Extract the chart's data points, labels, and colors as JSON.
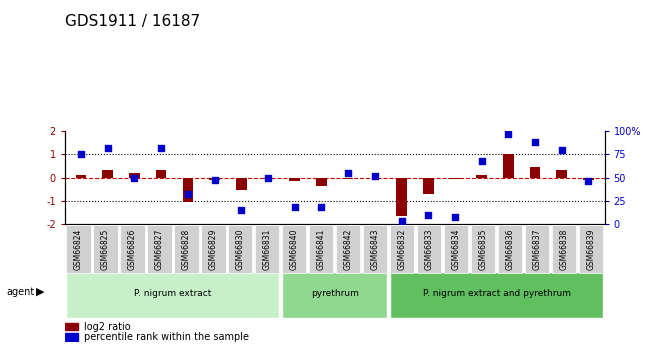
{
  "title": "GDS1911 / 16187",
  "samples": [
    "GSM66824",
    "GSM66825",
    "GSM66826",
    "GSM66827",
    "GSM66828",
    "GSM66829",
    "GSM66830",
    "GSM66831",
    "GSM66840",
    "GSM66841",
    "GSM66842",
    "GSM66843",
    "GSM66832",
    "GSM66833",
    "GSM66834",
    "GSM66835",
    "GSM66836",
    "GSM66837",
    "GSM66838",
    "GSM66839"
  ],
  "log2_ratio": [
    0.1,
    0.35,
    0.2,
    0.35,
    -1.05,
    -0.1,
    -0.55,
    -0.05,
    -0.15,
    -0.35,
    -0.05,
    -0.02,
    -1.65,
    -0.7,
    -0.05,
    0.12,
    1.0,
    0.45,
    0.35,
    -0.08
  ],
  "pct_rank": [
    75,
    82,
    50,
    82,
    32,
    47,
    15,
    50,
    18,
    18,
    55,
    52,
    3,
    10,
    8,
    68,
    97,
    88,
    80,
    46
  ],
  "groups": [
    {
      "label": "P. nigrum extract",
      "start": 0,
      "end": 8,
      "color": "#c8f0c8"
    },
    {
      "label": "pyrethrum",
      "start": 8,
      "end": 12,
      "color": "#90d890"
    },
    {
      "label": "P. nigrum extract and pyrethrum",
      "start": 12,
      "end": 20,
      "color": "#60c060"
    }
  ],
  "bar_color": "#8b0000",
  "dot_color": "#0000cd",
  "ylim_left": [
    -2,
    2
  ],
  "ylim_right": [
    0,
    100
  ],
  "hlines": [
    1.0,
    -1.0
  ],
  "hline_color": "black",
  "zero_line_color": "#cc0000",
  "background_color": "#ffffff",
  "title_fontsize": 12,
  "tick_fontsize": 7,
  "legend_items": [
    "log2 ratio",
    "percentile rank within the sample"
  ]
}
